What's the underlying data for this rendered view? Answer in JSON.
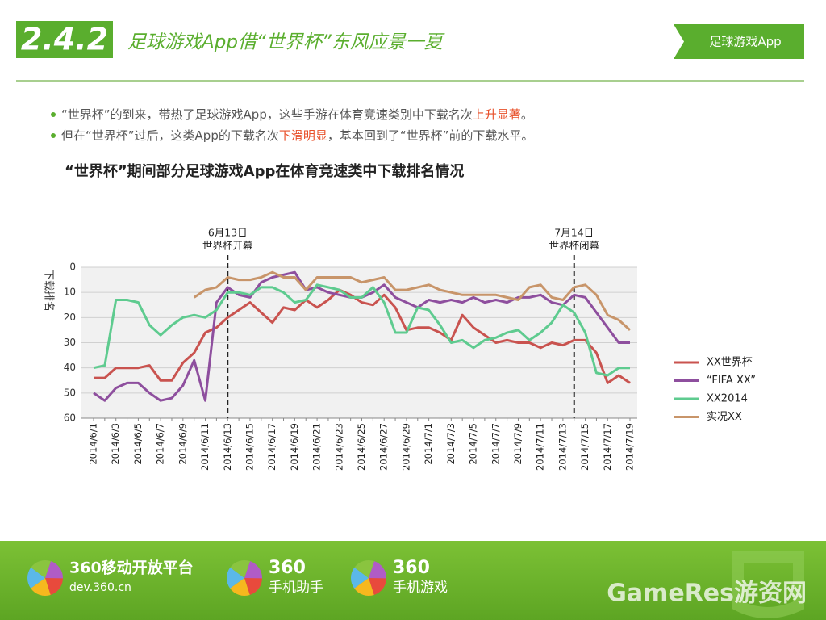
{
  "header": {
    "section": "2.4.2",
    "title": "足球游戏App借“世界杯”东风应景一夏",
    "tag": "足球游戏App"
  },
  "bullets": [
    [
      "“世界杯”的到来，带热了足球游戏App，这些手游在体育竞速类别中下载名次",
      "上升显著",
      "。"
    ],
    [
      "但在“世界杯”过后，这类App的下载名次",
      "下滑明显",
      "，基本回到了“世界杯”前的下载水平。"
    ]
  ],
  "chart_data": {
    "type": "line",
    "title": "“世界杯”期间部分足球游戏App在体育竞速类中下载排名情况",
    "y_label": "下载排名",
    "categories": [
      "2014/6/1",
      null,
      "2014/6/3",
      null,
      "2014/6/5",
      null,
      "2014/6/7",
      null,
      "2014/6/9",
      null,
      "2014/6/11",
      null,
      "2014/6/13",
      null,
      "2014/6/15",
      null,
      "2014/6/17",
      null,
      "2014/6/19",
      null,
      "2014/6/21",
      null,
      "2014/6/23",
      null,
      "2014/6/25",
      null,
      "2014/6/27",
      null,
      "2014/6/29",
      null,
      "2014/7/1",
      null,
      "2014/7/3",
      null,
      "2014/7/5",
      null,
      "2014/7/7",
      null,
      "2014/7/9",
      null,
      "2014/7/11",
      null,
      "2014/7/13",
      null,
      "2014/7/15",
      null,
      "2014/7/17",
      null,
      "2014/7/19"
    ],
    "ylim": [
      60,
      0
    ],
    "yticks": [
      0,
      10,
      20,
      30,
      40,
      50,
      60
    ],
    "grid": true,
    "legend": "right",
    "series": [
      {
        "name": "XX世界杯",
        "color": "#c9534f",
        "values": [
          44,
          44,
          40,
          40,
          40,
          39,
          45,
          45,
          38,
          34,
          26,
          24,
          20,
          17,
          14,
          18,
          22,
          16,
          17,
          13,
          16,
          13,
          9,
          11,
          14,
          15,
          11,
          16,
          25,
          24,
          24,
          26,
          29,
          19,
          24,
          27,
          30,
          29,
          30,
          30,
          32,
          30,
          31,
          29,
          29,
          34,
          46,
          43,
          46
        ]
      },
      {
        "name": "“FIFA XX”",
        "color": "#8e4f9e",
        "values": [
          50,
          53,
          48,
          46,
          46,
          50,
          53,
          52,
          47,
          37,
          53,
          14,
          8,
          11,
          12,
          6,
          4,
          3,
          2,
          9,
          8,
          10,
          11,
          12,
          12,
          10,
          7,
          12,
          14,
          16,
          13,
          14,
          13,
          14,
          12,
          14,
          13,
          14,
          12,
          12,
          11,
          14,
          15,
          11,
          12,
          18,
          24,
          30,
          30
        ]
      },
      {
        "name": "XX2014",
        "color": "#5ecb8f",
        "values": [
          40,
          39,
          13,
          13,
          14,
          23,
          27,
          23,
          20,
          19,
          20,
          17,
          10,
          10,
          11,
          8,
          8,
          10,
          14,
          13,
          7,
          8,
          9,
          12,
          12,
          8,
          14,
          26,
          26,
          16,
          17,
          23,
          30,
          29,
          32,
          29,
          28,
          26,
          25,
          29,
          26,
          22,
          15,
          18,
          26,
          42,
          43,
          40,
          40
        ]
      },
      {
        "name": "实况XX",
        "color": "#c8956a",
        "values": [
          null,
          null,
          null,
          null,
          null,
          null,
          null,
          null,
          null,
          12,
          9,
          8,
          4,
          5,
          5,
          4,
          2,
          4,
          4,
          9,
          4,
          4,
          4,
          4,
          6,
          5,
          4,
          9,
          9,
          8,
          7,
          9,
          10,
          11,
          11,
          11,
          11,
          12,
          13,
          8,
          7,
          12,
          13,
          8,
          7,
          11,
          19,
          21,
          25
        ]
      }
    ],
    "annotations": [
      {
        "at": 12,
        "lines": [
          "6月13日",
          "世界杯开幕"
        ]
      },
      {
        "at": 43,
        "lines": [
          "7月14日",
          "世界杯闭幕"
        ]
      }
    ]
  },
  "footer": {
    "logos": [
      [
        "360移动开放平台",
        "dev.360.cn"
      ],
      [
        "360",
        "手机助手"
      ],
      [
        "360",
        "手机游戏"
      ]
    ],
    "watermark": "GameRes游资网"
  }
}
